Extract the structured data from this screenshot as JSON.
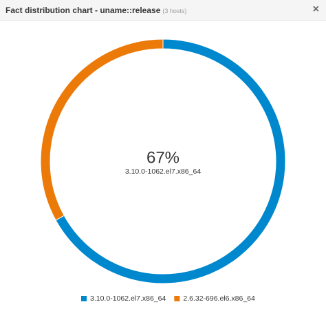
{
  "chart_data": {
    "type": "pie",
    "title": "Fact distribution chart - uname::release",
    "subtitle": "(3 hosts)",
    "close_button": "×",
    "categories": [
      "3.10.0-1062.el7.x86_64",
      "2.6.32-696.el6.x86_64"
    ],
    "values": [
      67,
      33
    ],
    "value_labels": [
      "67%",
      null
    ],
    "colors": [
      "#0088ce",
      "#ec7a08"
    ],
    "donut": true,
    "legend": "bottom"
  }
}
